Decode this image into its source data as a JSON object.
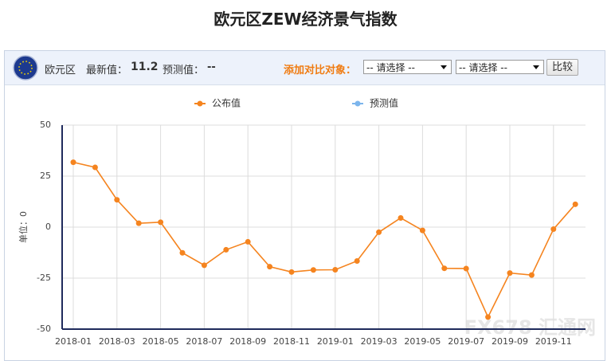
{
  "header": {
    "title": "欧元区ZEW经济景气指数"
  },
  "toolbar": {
    "region": "欧元区",
    "latest_label": "最新值：",
    "latest_value": 11.2,
    "forecast_label": "预测值：",
    "forecast_value": "--",
    "compare_label": "添加对比对象：",
    "select_1": "-- 请选择 --",
    "select_2": "-- 请选择 --",
    "button": "比较"
  },
  "watermark": "FX678 汇通网",
  "chart_data": {
    "type": "line",
    "y_label": "单位：0",
    "categories": [
      "2018-01",
      null,
      "2018-03",
      null,
      "2018-05",
      null,
      "2018-07",
      null,
      "2018-09",
      null,
      "2018-11",
      null,
      "2019-01",
      null,
      "2019-03",
      null,
      "2019-05",
      null,
      "2019-07",
      null,
      "2019-09",
      null,
      "2019-11",
      null
    ],
    "series": [
      {
        "name": "公布值",
        "color": "#f5841f",
        "values": [
          31.8,
          29.3,
          13.4,
          1.9,
          2.4,
          -12.6,
          -18.7,
          -11.1,
          -7.2,
          -19.4,
          -22.0,
          -21.0,
          -20.9,
          -16.6,
          -2.5,
          4.5,
          -1.6,
          -20.2,
          -20.3,
          -44.1,
          -22.5,
          -23.5,
          -1.0,
          11.2
        ]
      },
      {
        "name": "预测值",
        "color": "#7cb5ec",
        "values": [
          null,
          null,
          null,
          null,
          null,
          null,
          null,
          null,
          null,
          null,
          null,
          null,
          null,
          null,
          null,
          null,
          null,
          null,
          null,
          null,
          null,
          null,
          null,
          null
        ]
      }
    ],
    "ylim": [
      -50,
      50
    ],
    "yticks": [
      -50,
      -25,
      0,
      25,
      50
    ],
    "grid": true
  }
}
